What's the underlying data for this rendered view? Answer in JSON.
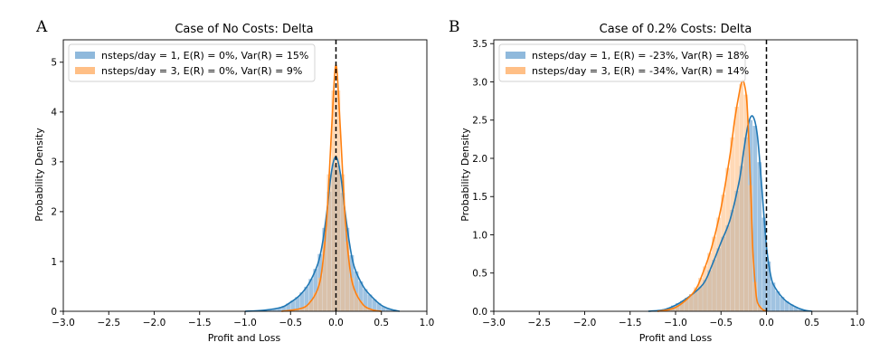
{
  "panels": [
    {
      "letter": "A",
      "title": "Case of No Costs: Delta",
      "xlabel": "Profit and Loss",
      "ylabel": "Probability Density"
    },
    {
      "letter": "B",
      "title": "Case of 0.2% Costs: Delta",
      "xlabel": "Profit and Loss",
      "ylabel": "Probability Density"
    }
  ],
  "colors": {
    "series1": "#1f77b4",
    "series1_hist": "#8fb9dc",
    "series2": "#ff7f0e",
    "series2_hist": "#ffbf86",
    "overlap": "#c4a486"
  },
  "chart_data": [
    {
      "type": "area",
      "title": "Case of No Costs: Delta",
      "xlabel": "Profit and Loss",
      "ylabel": "Probability Density",
      "xlim": [
        -3.0,
        1.0
      ],
      "ylim": [
        0,
        5.45
      ],
      "xticks": [
        -3.0,
        -2.5,
        -2.0,
        -1.5,
        -1.0,
        -0.5,
        0.0,
        0.5,
        1.0
      ],
      "yticks": [
        0,
        1,
        2,
        3,
        4,
        5
      ],
      "xtick_labels": [
        "−3.0",
        "−2.5",
        "−2.0",
        "−1.5",
        "−1.0",
        "−0.5",
        "0.0",
        "0.5",
        "1.0"
      ],
      "ytick_labels": [
        "0",
        "1",
        "2",
        "3",
        "4",
        "5"
      ],
      "vline_x": 0.0,
      "legend_position": "upper-left",
      "series": [
        {
          "name": "nsteps/day = 1, E(R) = 0%, Var(R) = 15%",
          "x": [
            -1.0,
            -0.8,
            -0.6,
            -0.5,
            -0.4,
            -0.3,
            -0.2,
            -0.15,
            -0.1,
            -0.05,
            0.0,
            0.05,
            0.1,
            0.15,
            0.2,
            0.3,
            0.4,
            0.5,
            0.6,
            0.7
          ],
          "density": [
            0.0,
            0.02,
            0.08,
            0.18,
            0.32,
            0.55,
            0.95,
            1.35,
            2.0,
            2.8,
            3.1,
            2.75,
            2.0,
            1.35,
            0.9,
            0.5,
            0.28,
            0.12,
            0.04,
            0.0
          ]
        },
        {
          "name": "nsteps/day = 3, E(R) = 0%, Var(R) = 9%",
          "x": [
            -0.6,
            -0.4,
            -0.3,
            -0.2,
            -0.15,
            -0.1,
            -0.05,
            -0.02,
            0.0,
            0.02,
            0.05,
            0.1,
            0.15,
            0.2,
            0.3,
            0.4,
            0.5
          ],
          "density": [
            0.0,
            0.05,
            0.15,
            0.45,
            0.9,
            1.9,
            3.6,
            4.6,
            4.95,
            4.6,
            3.6,
            1.9,
            0.9,
            0.45,
            0.13,
            0.03,
            0.0
          ]
        }
      ]
    },
    {
      "type": "area",
      "title": "Case of 0.2% Costs: Delta",
      "xlabel": "Profit and Loss",
      "ylabel": "Probability Density",
      "xlim": [
        -3.0,
        1.0
      ],
      "ylim": [
        0,
        3.55
      ],
      "xticks": [
        -3.0,
        -2.5,
        -2.0,
        -1.5,
        -1.0,
        -0.5,
        0.0,
        0.5,
        1.0
      ],
      "yticks": [
        0.0,
        0.5,
        1.0,
        1.5,
        2.0,
        2.5,
        3.0,
        3.5
      ],
      "xtick_labels": [
        "−3.0",
        "−2.5",
        "−2.0",
        "−1.5",
        "−1.0",
        "−0.5",
        "0.0",
        "0.5",
        "1.0"
      ],
      "ytick_labels": [
        "0.0",
        "0.5",
        "1.0",
        "1.5",
        "2.0",
        "2.5",
        "3.0",
        "3.5"
      ],
      "vline_x": 0.0,
      "legend_position": "upper-left",
      "series": [
        {
          "name": "nsteps/day = 1, E(R) = -23%, Var(R) = 18%",
          "x": [
            -1.3,
            -1.1,
            -0.9,
            -0.7,
            -0.6,
            -0.5,
            -0.4,
            -0.3,
            -0.25,
            -0.2,
            -0.15,
            -0.1,
            -0.05,
            0.0,
            0.05,
            0.1,
            0.2,
            0.3,
            0.4,
            0.5
          ],
          "density": [
            0.0,
            0.03,
            0.15,
            0.35,
            0.6,
            0.9,
            1.2,
            1.7,
            2.1,
            2.45,
            2.55,
            2.3,
            1.6,
            0.85,
            0.45,
            0.3,
            0.15,
            0.07,
            0.02,
            0.0
          ]
        },
        {
          "name": "nsteps/day = 3, E(R) = -34%, Var(R) = 14%",
          "x": [
            -1.2,
            -1.0,
            -0.8,
            -0.7,
            -0.6,
            -0.5,
            -0.4,
            -0.35,
            -0.3,
            -0.27,
            -0.25,
            -0.22,
            -0.2,
            -0.17,
            -0.15,
            -0.12,
            -0.1,
            -0.05,
            0.0
          ],
          "density": [
            0.0,
            0.05,
            0.25,
            0.5,
            0.85,
            1.35,
            2.05,
            2.5,
            2.85,
            3.0,
            3.0,
            2.8,
            2.4,
            1.5,
            0.8,
            0.3,
            0.12,
            0.03,
            0.0
          ]
        }
      ]
    }
  ]
}
